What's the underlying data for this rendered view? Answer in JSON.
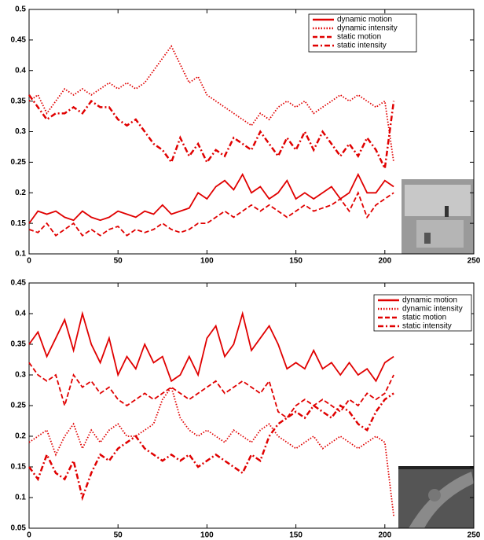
{
  "chart_data": [
    {
      "type": "line",
      "x": [
        0,
        5,
        10,
        15,
        20,
        25,
        30,
        35,
        40,
        45,
        50,
        55,
        60,
        65,
        70,
        75,
        80,
        85,
        90,
        95,
        100,
        105,
        110,
        115,
        120,
        125,
        130,
        135,
        140,
        145,
        150,
        155,
        160,
        165,
        170,
        175,
        180,
        185,
        190,
        195,
        200,
        205
      ],
      "series": [
        {
          "name": "dynamic motion",
          "color": "#e00000",
          "linestyle": "solid",
          "values": [
            0.15,
            0.17,
            0.165,
            0.17,
            0.16,
            0.155,
            0.17,
            0.16,
            0.155,
            0.16,
            0.17,
            0.165,
            0.16,
            0.17,
            0.165,
            0.18,
            0.165,
            0.17,
            0.175,
            0.2,
            0.19,
            0.21,
            0.22,
            0.205,
            0.23,
            0.2,
            0.21,
            0.19,
            0.2,
            0.22,
            0.19,
            0.2,
            0.19,
            0.2,
            0.21,
            0.19,
            0.2,
            0.23,
            0.2,
            0.2,
            0.22,
            0.21
          ]
        },
        {
          "name": "dynamic intensity",
          "color": "#e00000",
          "linestyle": "dotted",
          "values": [
            0.35,
            0.36,
            0.33,
            0.35,
            0.37,
            0.36,
            0.37,
            0.36,
            0.37,
            0.38,
            0.37,
            0.38,
            0.37,
            0.38,
            0.4,
            0.42,
            0.44,
            0.41,
            0.38,
            0.39,
            0.36,
            0.35,
            0.34,
            0.33,
            0.32,
            0.31,
            0.33,
            0.32,
            0.34,
            0.35,
            0.34,
            0.35,
            0.33,
            0.34,
            0.35,
            0.36,
            0.35,
            0.36,
            0.35,
            0.34,
            0.35,
            0.25
          ]
        },
        {
          "name": "static motion",
          "color": "#e00000",
          "linestyle": "dashed",
          "values": [
            0.14,
            0.135,
            0.15,
            0.13,
            0.14,
            0.15,
            0.13,
            0.14,
            0.13,
            0.14,
            0.145,
            0.13,
            0.14,
            0.135,
            0.14,
            0.15,
            0.14,
            0.135,
            0.14,
            0.15,
            0.15,
            0.16,
            0.17,
            0.16,
            0.17,
            0.18,
            0.17,
            0.18,
            0.17,
            0.16,
            0.17,
            0.18,
            0.17,
            0.175,
            0.18,
            0.19,
            0.17,
            0.2,
            0.16,
            0.18,
            0.19,
            0.2
          ]
        },
        {
          "name": "static intensity",
          "color": "#e00000",
          "linestyle": "dashdot",
          "values": [
            0.36,
            0.34,
            0.32,
            0.33,
            0.33,
            0.34,
            0.33,
            0.35,
            0.34,
            0.34,
            0.32,
            0.31,
            0.32,
            0.3,
            0.28,
            0.27,
            0.25,
            0.29,
            0.26,
            0.28,
            0.25,
            0.27,
            0.26,
            0.29,
            0.28,
            0.27,
            0.3,
            0.28,
            0.26,
            0.29,
            0.27,
            0.3,
            0.27,
            0.3,
            0.28,
            0.26,
            0.28,
            0.26,
            0.29,
            0.27,
            0.24,
            0.35
          ]
        }
      ],
      "xlim": [
        0,
        250
      ],
      "xticks": [
        0,
        50,
        100,
        150,
        200,
        250
      ],
      "ylim": [
        0.1,
        0.5
      ],
      "yticks": [
        0.1,
        0.15,
        0.2,
        0.25,
        0.3,
        0.35,
        0.4,
        0.45,
        0.5
      ],
      "legend": "upper right"
    },
    {
      "type": "line",
      "x": [
        0,
        5,
        10,
        15,
        20,
        25,
        30,
        35,
        40,
        45,
        50,
        55,
        60,
        65,
        70,
        75,
        80,
        85,
        90,
        95,
        100,
        105,
        110,
        115,
        120,
        125,
        130,
        135,
        140,
        145,
        150,
        155,
        160,
        165,
        170,
        175,
        180,
        185,
        190,
        195,
        200,
        205
      ],
      "series": [
        {
          "name": "dynamic motion",
          "color": "#e00000",
          "linestyle": "solid",
          "values": [
            0.35,
            0.37,
            0.33,
            0.36,
            0.39,
            0.34,
            0.4,
            0.35,
            0.32,
            0.36,
            0.3,
            0.33,
            0.31,
            0.35,
            0.32,
            0.33,
            0.29,
            0.3,
            0.33,
            0.3,
            0.36,
            0.38,
            0.33,
            0.35,
            0.4,
            0.34,
            0.36,
            0.38,
            0.35,
            0.31,
            0.32,
            0.31,
            0.34,
            0.31,
            0.32,
            0.3,
            0.32,
            0.3,
            0.31,
            0.29,
            0.32,
            0.33
          ]
        },
        {
          "name": "dynamic intensity",
          "color": "#e00000",
          "linestyle": "dotted",
          "values": [
            0.19,
            0.2,
            0.21,
            0.17,
            0.2,
            0.22,
            0.18,
            0.21,
            0.19,
            0.21,
            0.22,
            0.2,
            0.2,
            0.21,
            0.22,
            0.26,
            0.28,
            0.23,
            0.21,
            0.2,
            0.21,
            0.2,
            0.19,
            0.21,
            0.2,
            0.19,
            0.21,
            0.22,
            0.2,
            0.19,
            0.18,
            0.19,
            0.2,
            0.18,
            0.19,
            0.2,
            0.19,
            0.18,
            0.19,
            0.2,
            0.19,
            0.07
          ]
        },
        {
          "name": "static motion",
          "color": "#e00000",
          "linestyle": "dashed",
          "values": [
            0.32,
            0.3,
            0.29,
            0.3,
            0.25,
            0.3,
            0.28,
            0.29,
            0.27,
            0.28,
            0.26,
            0.25,
            0.26,
            0.27,
            0.26,
            0.27,
            0.28,
            0.27,
            0.26,
            0.27,
            0.28,
            0.29,
            0.27,
            0.28,
            0.29,
            0.28,
            0.27,
            0.29,
            0.24,
            0.23,
            0.25,
            0.26,
            0.25,
            0.26,
            0.25,
            0.24,
            0.26,
            0.25,
            0.27,
            0.26,
            0.27,
            0.3
          ]
        },
        {
          "name": "static intensity",
          "color": "#e00000",
          "linestyle": "dashdot",
          "values": [
            0.15,
            0.13,
            0.17,
            0.14,
            0.13,
            0.16,
            0.1,
            0.14,
            0.17,
            0.16,
            0.18,
            0.19,
            0.2,
            0.18,
            0.17,
            0.16,
            0.17,
            0.16,
            0.17,
            0.15,
            0.16,
            0.17,
            0.16,
            0.15,
            0.14,
            0.17,
            0.16,
            0.2,
            0.22,
            0.23,
            0.24,
            0.23,
            0.25,
            0.24,
            0.23,
            0.25,
            0.24,
            0.22,
            0.21,
            0.24,
            0.26,
            0.27
          ]
        }
      ],
      "xlim": [
        0,
        250
      ],
      "xticks": [
        0,
        50,
        100,
        150,
        200,
        250
      ],
      "ylim": [
        0.05,
        0.45
      ],
      "yticks": [
        0.05,
        0.1,
        0.15,
        0.2,
        0.25,
        0.3,
        0.35,
        0.4,
        0.45
      ],
      "legend": "upper right"
    }
  ]
}
